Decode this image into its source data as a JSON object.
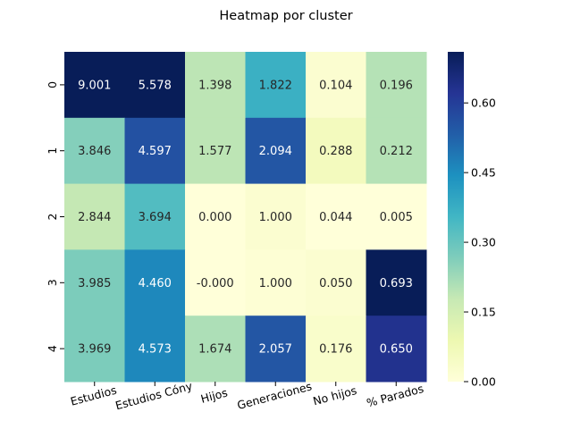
{
  "chart_data": {
    "type": "heatmap",
    "title": "Heatmap por cluster",
    "xlabel": "",
    "ylabel": "",
    "x_categories": [
      "Estudios",
      "Estudios Cóny",
      "Hijos",
      "Generaciones",
      "No hijos",
      "% Parados"
    ],
    "y_categories": [
      "0",
      "1",
      "2",
      "3",
      "4"
    ],
    "annotations": [
      [
        "9.001",
        "5.578",
        "1.398",
        "1.822",
        "0.104",
        "0.196"
      ],
      [
        "3.846",
        "4.597",
        "1.577",
        "2.094",
        "0.288",
        "0.212"
      ],
      [
        "2.844",
        "3.694",
        "0.000",
        "1.000",
        "0.044",
        "0.005"
      ],
      [
        "3.985",
        "4.460",
        "-0.000",
        "1.000",
        "0.050",
        "0.693"
      ],
      [
        "3.969",
        "4.573",
        "1.674",
        "2.057",
        "0.176",
        "0.650"
      ]
    ],
    "color_values": [
      [
        0.71,
        0.71,
        0.19,
        0.37,
        0.02,
        0.2
      ],
      [
        0.26,
        0.56,
        0.19,
        0.55,
        0.06,
        0.2
      ],
      [
        0.18,
        0.33,
        0.0,
        0.02,
        0.0,
        0.0
      ],
      [
        0.27,
        0.46,
        0.0,
        0.01,
        0.02,
        0.71
      ],
      [
        0.27,
        0.46,
        0.21,
        0.55,
        0.03,
        0.63
      ]
    ],
    "colormap": "YlGnBu",
    "color_range": [
      0,
      0.71
    ],
    "colorbar_ticks": [
      "0.00",
      "0.15",
      "0.30",
      "0.45",
      "0.60"
    ],
    "colorbar_tick_values": [
      0,
      0.15,
      0.3,
      0.45,
      0.6
    ]
  }
}
